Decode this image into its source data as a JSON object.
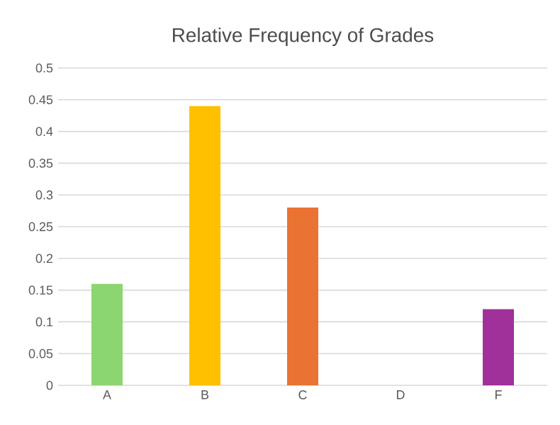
{
  "chart_data": {
    "type": "bar",
    "title": "Relative Frequency of Grades",
    "categories": [
      "A",
      "B",
      "C",
      "D",
      "F"
    ],
    "values": [
      0.16,
      0.44,
      0.28,
      0,
      0.12
    ],
    "colors": [
      "#8cd672",
      "#ffc000",
      "#ea7232",
      "#7f7f7f",
      "#a0309a"
    ],
    "ylim": [
      0,
      0.5
    ],
    "yticks": [
      0,
      0.05,
      0.1,
      0.15,
      0.2,
      0.25,
      0.3,
      0.35,
      0.4,
      0.45,
      0.5
    ],
    "grid": "y"
  }
}
